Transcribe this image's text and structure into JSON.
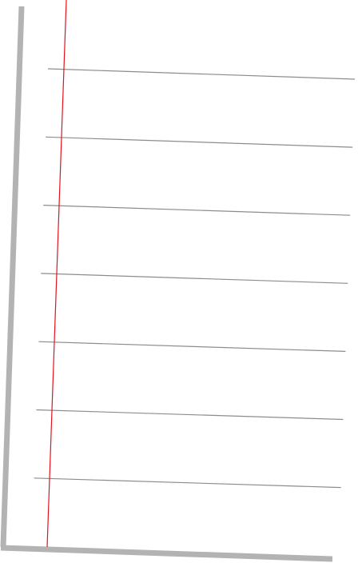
{
  "paper": {
    "background": "#ffffff",
    "edge_color": "#b3b3b3",
    "rule_color": "#8c8c8c",
    "margin_color": "#e0141e",
    "ruled_line_count": 7
  }
}
